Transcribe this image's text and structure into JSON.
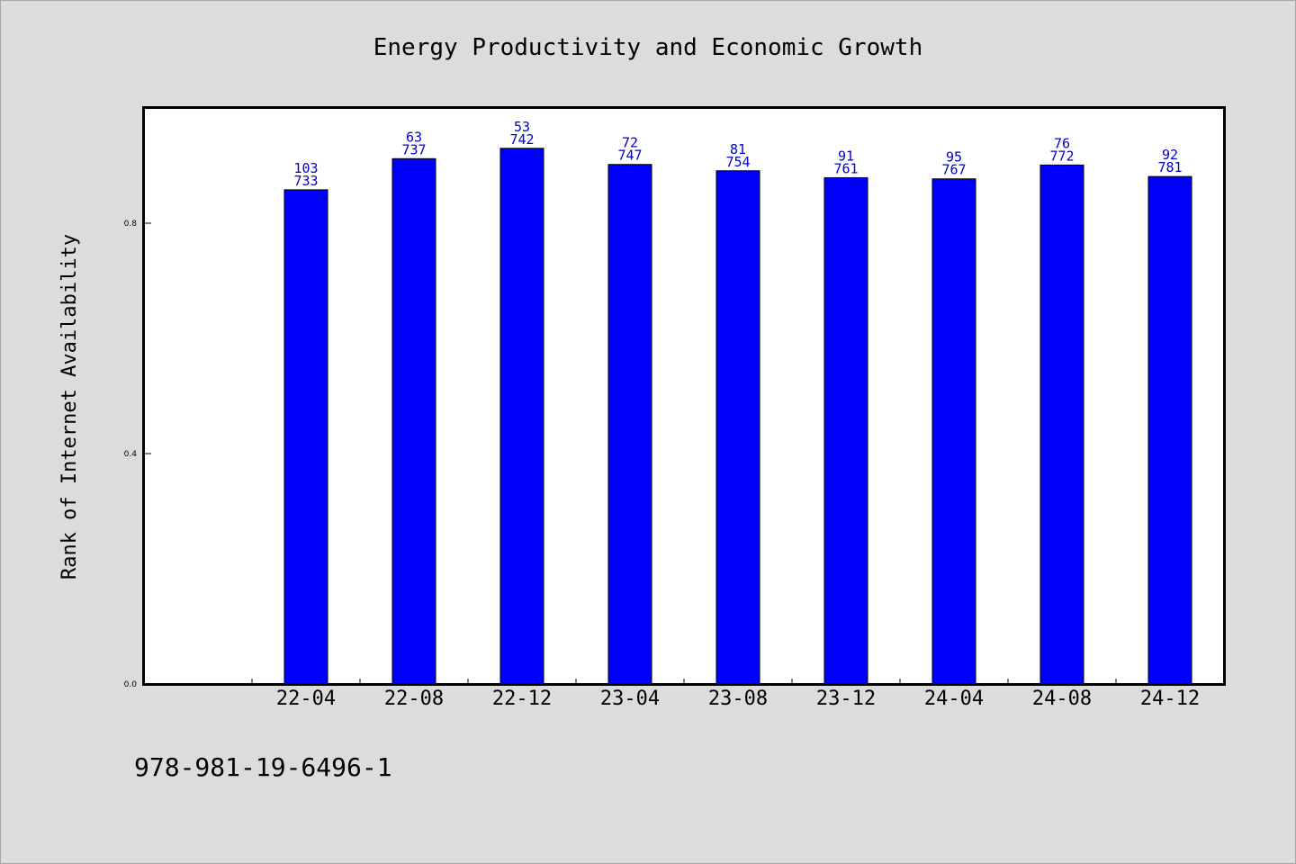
{
  "chart_data": {
    "type": "bar",
    "title": "Energy Productivity and Economic Growth",
    "xlabel": "",
    "ylabel": "Rank of Internet Availability",
    "categories": [
      "22-04",
      "22-08",
      "22-12",
      "23-04",
      "23-08",
      "23-12",
      "24-04",
      "24-08",
      "24-12"
    ],
    "values": [
      0.858,
      0.912,
      0.93,
      0.902,
      0.891,
      0.879,
      0.877,
      0.901,
      0.881
    ],
    "label_top": [
      "103",
      "63",
      "53",
      "72",
      "81",
      "91",
      "95",
      "76",
      "92"
    ],
    "label_bottom": [
      "733",
      "737",
      "742",
      "747",
      "754",
      "761",
      "767",
      "772",
      "781"
    ],
    "ylim": [
      0.0,
      1.0
    ],
    "yticks": [
      "0.0",
      "0.4",
      "0.8"
    ],
    "ytick_values": [
      0.0,
      0.4,
      0.8
    ],
    "grid": false,
    "legend": "none",
    "bar_color": "#0000ff",
    "label_color": "#0000cc"
  },
  "footer": {
    "isbn": "978-981-19-6496-1"
  },
  "colors": {
    "background": "#dcdcdc",
    "plot_background": "#ffffff"
  }
}
